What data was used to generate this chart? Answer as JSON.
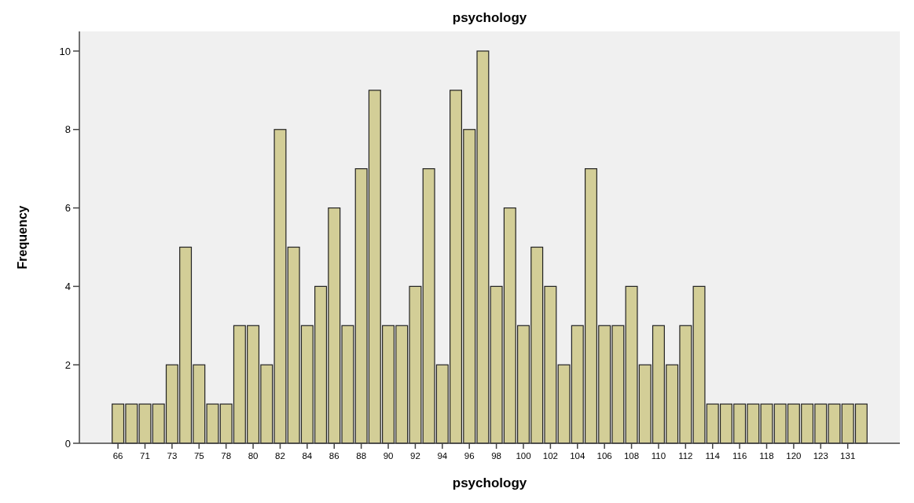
{
  "chart_data": {
    "type": "bar",
    "title": "psychology",
    "xlabel": "psychology",
    "ylabel": "Frequency",
    "categories": [
      "66",
      null,
      "71",
      null,
      "73",
      null,
      "75",
      null,
      "78",
      null,
      "80",
      null,
      "82",
      null,
      "84",
      null,
      "86",
      null,
      "88",
      null,
      "90",
      null,
      "92",
      null,
      "94",
      null,
      "96",
      null,
      "98",
      null,
      "100",
      null,
      "102",
      null,
      "104",
      null,
      "106",
      null,
      "108",
      null,
      "110",
      null,
      "112",
      null,
      "114",
      null,
      "116",
      null,
      "118",
      null,
      "120",
      null,
      "123",
      null,
      "131",
      null
    ],
    "values": [
      1,
      1,
      1,
      1,
      2,
      5,
      2,
      1,
      1,
      3,
      3,
      2,
      8,
      5,
      3,
      4,
      6,
      3,
      7,
      9,
      3,
      3,
      4,
      7,
      2,
      9,
      8,
      10,
      4,
      6,
      3,
      5,
      4,
      2,
      3,
      7,
      3,
      3,
      4,
      2,
      3,
      2,
      3,
      4,
      1,
      1,
      1,
      1,
      1,
      1,
      1,
      1,
      1,
      1,
      1,
      1
    ],
    "color": "#d3ce97",
    "ylim": [
      0,
      10.5
    ],
    "yticks": [
      0,
      2,
      4,
      6,
      8,
      10
    ],
    "grid": false
  }
}
